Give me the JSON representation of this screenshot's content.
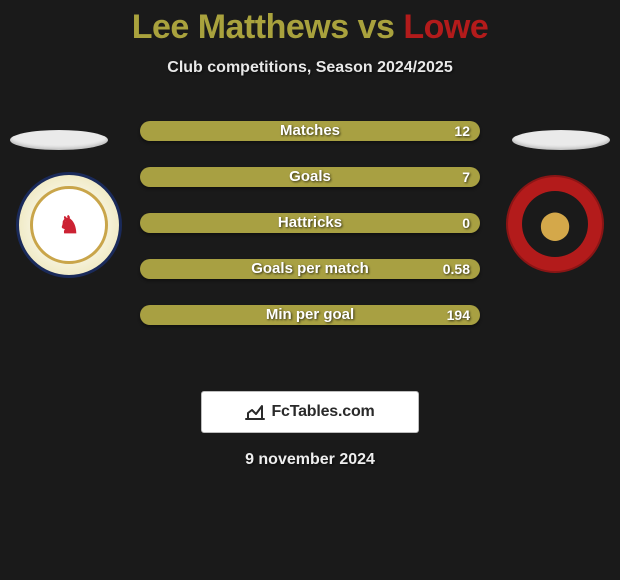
{
  "title": {
    "player1": "Lee Matthews",
    "vs": "vs",
    "player2": "Lowe",
    "color1": "#a9a23d",
    "color2": "#b31b1b"
  },
  "subtitle": "Club competitions, Season 2024/2025",
  "stats": [
    {
      "label": "Matches",
      "value": "12"
    },
    {
      "label": "Goals",
      "value": "7"
    },
    {
      "label": "Hattricks",
      "value": "0"
    },
    {
      "label": "Goals per match",
      "value": "0.58"
    },
    {
      "label": "Min per goal",
      "value": "194"
    }
  ],
  "bar_color": "#a8a042",
  "brand": "FcTables.com",
  "date": "9 november 2024",
  "background_color": "#1a1a1a"
}
